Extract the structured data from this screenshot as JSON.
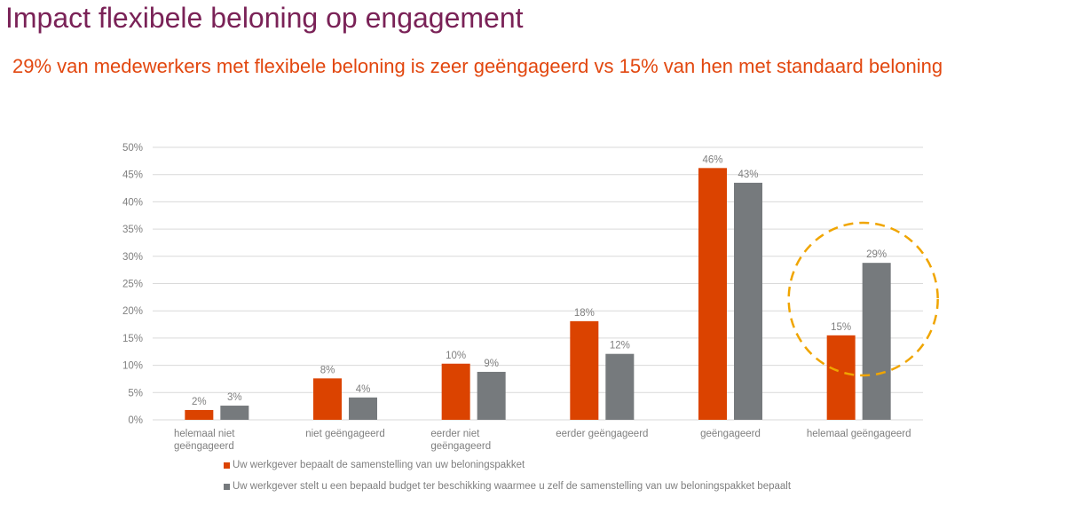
{
  "title": "Impact flexibele beloning op engagement",
  "subtitle": "29% van medewerkers met flexibele beloning is zeer geëngageerd vs 15% van hen met standaard beloning",
  "chart_data": {
    "type": "bar",
    "title": "",
    "xlabel": "",
    "ylabel": "",
    "ylim": [
      0,
      50
    ],
    "yticks": [
      "0%",
      "5%",
      "10%",
      "15%",
      "20%",
      "25%",
      "30%",
      "35%",
      "40%",
      "45%",
      "50%"
    ],
    "grid": true,
    "legend_position": "bottom",
    "categories": [
      "helemaal niet geëngageerd",
      "niet geëngageerd",
      "eerder niet geëngageerd",
      "eerder geëngageerd",
      "geëngageerd",
      "helemaal geëngageerd"
    ],
    "series": [
      {
        "name": "Uw werkgever bepaalt de samenstelling van uw beloningspakket",
        "color": "#db4300",
        "values": [
          1.8,
          7.6,
          10.3,
          18.1,
          46.2,
          15.5
        ],
        "labels": [
          "2%",
          "8%",
          "10%",
          "18%",
          "46%",
          "15%"
        ]
      },
      {
        "name": "Uw werkgever stelt u een bepaald budget ter beschikking waarmee u zelf de samenstelling van uw beloningspakket bepaalt",
        "color": "#767a7d",
        "values": [
          2.6,
          4.1,
          8.8,
          12.1,
          43.5,
          28.8
        ],
        "labels": [
          "3%",
          "4%",
          "9%",
          "12%",
          "43%",
          "29%"
        ]
      }
    ],
    "annotation": {
      "type": "dashed-circle",
      "target_category": "helemaal geëngageerd",
      "color": "#f0a500"
    }
  }
}
